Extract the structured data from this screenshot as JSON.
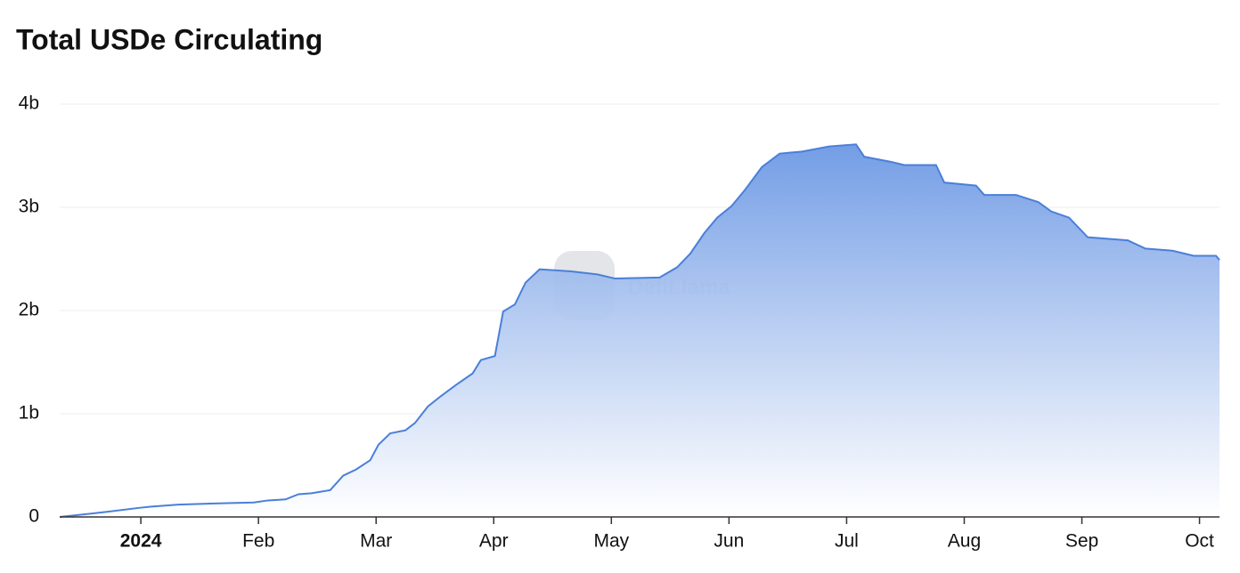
{
  "chart_data": {
    "type": "area",
    "title": "Total USDe Circulating",
    "watermark": "DefiLlama",
    "x": [
      -0.69,
      -0.44,
      -0.29,
      0,
      0.09,
      0.32,
      0.62,
      0.96,
      1.08,
      1.23,
      1.34,
      1.45,
      1.61,
      1.72,
      1.83,
      1.95,
      2.02,
      2.12,
      2.25,
      2.33,
      2.44,
      2.55,
      2.68,
      2.82,
      2.89,
      3.01,
      3.08,
      3.18,
      3.27,
      3.39,
      3.65,
      3.88,
      4.03,
      4.41,
      4.56,
      4.67,
      4.79,
      4.9,
      5.02,
      5.13,
      5.28,
      5.43,
      5.62,
      5.85,
      6.08,
      6.15,
      6.38,
      6.49,
      6.76,
      6.83,
      7.1,
      7.17,
      7.44,
      7.63,
      7.74,
      7.89,
      8.05,
      8.39,
      8.54,
      8.77,
      8.95,
      9.14,
      9.17
    ],
    "values": [
      0,
      0.03,
      0.05,
      0.09,
      0.1,
      0.12,
      0.13,
      0.14,
      0.16,
      0.17,
      0.22,
      0.23,
      0.26,
      0.4,
      0.46,
      0.55,
      0.7,
      0.81,
      0.84,
      0.91,
      1.07,
      1.17,
      1.28,
      1.39,
      1.52,
      1.56,
      1.99,
      2.06,
      2.27,
      2.4,
      2.38,
      2.35,
      2.31,
      2.32,
      2.42,
      2.55,
      2.75,
      2.9,
      3.01,
      3.16,
      3.39,
      3.52,
      3.54,
      3.59,
      3.61,
      3.49,
      3.44,
      3.41,
      3.41,
      3.24,
      3.21,
      3.12,
      3.12,
      3.05,
      2.96,
      2.9,
      2.71,
      2.68,
      2.6,
      2.58,
      2.53,
      2.53,
      2.49
    ],
    "color": "#4a7fd9",
    "xlim": [
      -0.69,
      9.17
    ],
    "xticks": [
      {
        "value": 0,
        "label": "2024"
      },
      {
        "value": 1,
        "label": "Feb"
      },
      {
        "value": 2,
        "label": "Mar"
      },
      {
        "value": 3,
        "label": "Apr"
      },
      {
        "value": 4,
        "label": "May"
      },
      {
        "value": 5,
        "label": "Jun"
      },
      {
        "value": 6,
        "label": "Jul"
      },
      {
        "value": 7,
        "label": "Aug"
      },
      {
        "value": 8,
        "label": "Sep"
      },
      {
        "value": 9,
        "label": "Oct"
      }
    ],
    "ylim": [
      0,
      4
    ],
    "yticks": [
      0,
      {
        "value": 1,
        "label": "1b"
      },
      {
        "value": 2,
        "label": "2b"
      },
      {
        "value": 3,
        "label": "3b"
      },
      {
        "value": 4,
        "label": "4b"
      }
    ],
    "grid": true
  }
}
